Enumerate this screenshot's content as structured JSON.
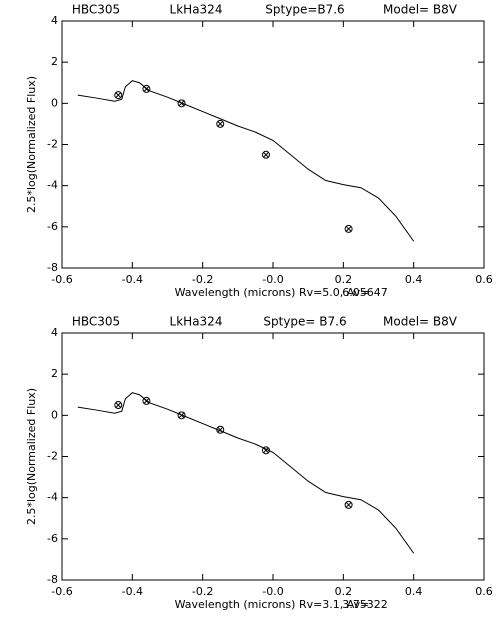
{
  "chart_data": [
    {
      "type": "line",
      "title_parts": [
        "HBC305",
        "LkHa324",
        "Sptype=B7.6",
        "Model= B8V"
      ],
      "xlabel": "Wavelength (microns) Rv=5.0, Av=",
      "av_value": "6.05647",
      "ylabel": "2.5*log(Normalized Flux)",
      "xlim": [
        -0.6,
        0.6
      ],
      "ylim": [
        -8,
        4
      ],
      "xticks": [
        -0.6,
        -0.4,
        -0.2,
        {
          "value": 0,
          "label": "-0.0"
        },
        0.2,
        0.4,
        0.6
      ],
      "yticks": [
        -8,
        -6,
        -4,
        -2,
        0,
        2,
        4
      ],
      "series": [
        {
          "color": "#000000",
          "x": [
            -0.555,
            -0.5,
            -0.45,
            -0.43,
            -0.42,
            -0.4,
            -0.38,
            -0.35,
            -0.3,
            -0.25,
            -0.2,
            -0.15,
            -0.1,
            -0.05,
            0.0,
            0.05,
            0.1,
            0.15,
            0.2,
            0.25,
            0.3,
            0.35,
            0.4
          ],
          "values": [
            0.4,
            0.25,
            0.1,
            0.2,
            0.8,
            1.1,
            1.0,
            0.6,
            0.3,
            -0.05,
            -0.4,
            -0.75,
            -1.1,
            -1.4,
            -1.8,
            -2.5,
            -3.2,
            -3.75,
            -3.95,
            -4.1,
            -4.6,
            -5.5,
            -6.7
          ]
        },
        {
          "color": "#000000",
          "marker": "circle-x",
          "x": [
            -0.44,
            -0.36,
            -0.26,
            -0.15,
            -0.02,
            0.215
          ],
          "values": [
            0.4,
            0.7,
            0.0,
            -1.0,
            -2.5,
            -6.1
          ]
        }
      ]
    },
    {
      "type": "line",
      "title_parts": [
        "HBC305",
        "LkHa324",
        "Sptype= B7.6",
        "Model= B8V"
      ],
      "xlabel": "Wavelength (microns) Rv=3.1,  Av=",
      "av_value": "3.75322",
      "ylabel": "2.5*log(Normalized Flux)",
      "xlim": [
        -0.6,
        0.6
      ],
      "ylim": [
        -8,
        4
      ],
      "xticks": [
        -0.6,
        -0.4,
        -0.2,
        {
          "value": 0,
          "label": "-0.0"
        },
        0.2,
        0.4,
        0.6
      ],
      "yticks": [
        -8,
        -6,
        -4,
        -2,
        0,
        2,
        4
      ],
      "series": [
        {
          "color": "#000000",
          "x": [
            -0.555,
            -0.5,
            -0.45,
            -0.43,
            -0.42,
            -0.4,
            -0.38,
            -0.35,
            -0.3,
            -0.25,
            -0.2,
            -0.15,
            -0.1,
            -0.05,
            0.0,
            0.05,
            0.1,
            0.15,
            0.2,
            0.25,
            0.3,
            0.35,
            0.4
          ],
          "values": [
            0.4,
            0.25,
            0.1,
            0.2,
            0.8,
            1.1,
            1.0,
            0.6,
            0.3,
            -0.05,
            -0.4,
            -0.75,
            -1.1,
            -1.4,
            -1.8,
            -2.5,
            -3.2,
            -3.75,
            -3.95,
            -4.1,
            -4.6,
            -5.5,
            -6.7
          ]
        },
        {
          "color": "#000000",
          "marker": "circle-x",
          "x": [
            -0.44,
            -0.36,
            -0.26,
            -0.15,
            -0.02,
            0.215
          ],
          "values": [
            0.5,
            0.7,
            0.0,
            -0.7,
            -1.7,
            -4.35
          ]
        }
      ]
    }
  ]
}
